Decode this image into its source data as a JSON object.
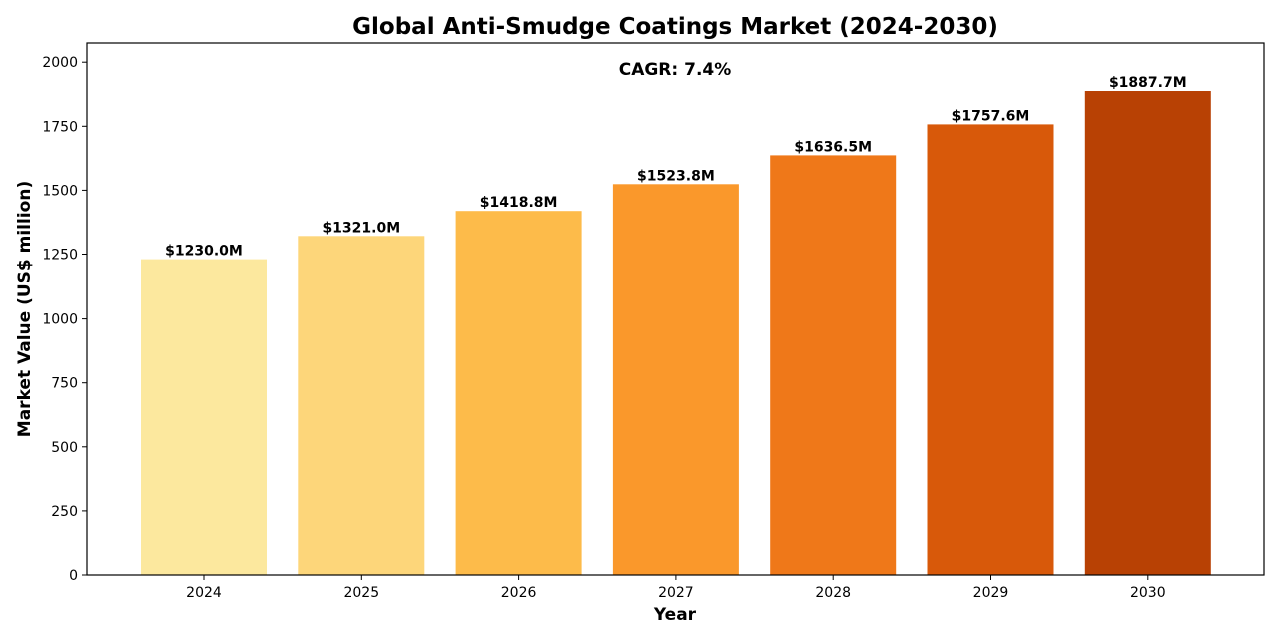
{
  "chart_data": {
    "type": "bar",
    "title": "Global Anti-Smudge Coatings Market (2024-2030)",
    "annotation": "CAGR: 7.4%",
    "xlabel": "Year",
    "ylabel": "Market Value (US$ million)",
    "categories": [
      "2024",
      "2025",
      "2026",
      "2027",
      "2028",
      "2029",
      "2030"
    ],
    "values": [
      1230.0,
      1321.0,
      1418.8,
      1523.8,
      1636.5,
      1757.6,
      1887.7
    ],
    "data_labels": [
      "$1230.0M",
      "$1321.0M",
      "$1418.8M",
      "$1523.8M",
      "$1636.5M",
      "$1757.6M",
      "$1887.7M"
    ],
    "bar_colors": [
      "#fce89e",
      "#fdd67a",
      "#fdbb4a",
      "#fa982b",
      "#ef7819",
      "#d8590a",
      "#b84104"
    ],
    "yticks": [
      0,
      250,
      500,
      750,
      1000,
      1250,
      1500,
      1750,
      2000
    ],
    "ylim": [
      0,
      2075
    ],
    "grid": false,
    "legend": "none"
  }
}
